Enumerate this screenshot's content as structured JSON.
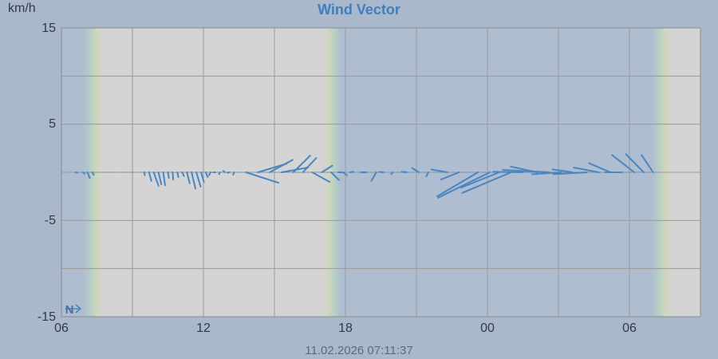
{
  "chart_data": {
    "type": "vector",
    "title": "Wind Vector",
    "ylabel": "km/h",
    "ylim": [
      -15,
      15
    ],
    "y_ticks": [
      "15",
      "5",
      "-5",
      "-15"
    ],
    "x_ticks": [
      "06",
      "12",
      "18",
      "00",
      "06"
    ],
    "x_range_hours": [
      0,
      27
    ],
    "compass_label": "N",
    "timestamp": "11.02.2026 07:11:37",
    "grid": true,
    "colors": {
      "vector": "#4a86c0",
      "day_fill": "#d4d4d4",
      "night_fill": "#aebdcf",
      "background": "#a9b8ca",
      "title": "#3f7fbf"
    },
    "daylight_periods": [
      {
        "start": 1.0,
        "end": 11.8
      },
      {
        "start": 25.0,
        "end": 27.0
      }
    ],
    "vectors": [
      {
        "t": 0.6,
        "u": 0.3,
        "v": -0.1
      },
      {
        "t": 0.9,
        "u": 0.4,
        "v": -0.3
      },
      {
        "t": 1.1,
        "u": 0.5,
        "v": -1.2
      },
      {
        "t": 1.3,
        "u": 0.3,
        "v": -0.5
      },
      {
        "t": 3.5,
        "u": 0.1,
        "v": -0.6
      },
      {
        "t": 3.7,
        "u": 0.5,
        "v": -1.8
      },
      {
        "t": 3.9,
        "u": 1.0,
        "v": -2.8
      },
      {
        "t": 4.1,
        "u": 0.6,
        "v": -2.5
      },
      {
        "t": 4.3,
        "u": 0.4,
        "v": -2.7
      },
      {
        "t": 4.5,
        "u": 0.2,
        "v": -1.2
      },
      {
        "t": 4.7,
        "u": 0.1,
        "v": -1.5
      },
      {
        "t": 4.9,
        "u": 0.2,
        "v": -1.0
      },
      {
        "t": 5.1,
        "u": 0.4,
        "v": -0.8
      },
      {
        "t": 5.3,
        "u": 0.6,
        "v": -2.3
      },
      {
        "t": 5.5,
        "u": 0.8,
        "v": -3.4
      },
      {
        "t": 5.7,
        "u": 0.9,
        "v": -3.0
      },
      {
        "t": 5.9,
        "u": 0.6,
        "v": -2.0
      },
      {
        "t": 6.1,
        "u": 0.4,
        "v": -1.0
      },
      {
        "t": 6.3,
        "u": -0.3,
        "v": -0.6
      },
      {
        "t": 6.5,
        "u": -0.4,
        "v": 0.0
      },
      {
        "t": 6.7,
        "u": -0.2,
        "v": -0.4
      },
      {
        "t": 6.9,
        "u": -0.3,
        "v": 0.3
      },
      {
        "t": 7.1,
        "u": -0.4,
        "v": -0.1
      },
      {
        "t": 7.3,
        "u": -0.2,
        "v": -0.5
      },
      {
        "t": 7.8,
        "u": 6.8,
        "v": -2.2
      },
      {
        "t": 8.3,
        "u": 6.0,
        "v": 1.8
      },
      {
        "t": 8.8,
        "u": 4.8,
        "v": 2.6
      },
      {
        "t": 9.3,
        "u": 5.5,
        "v": 1.0
      },
      {
        "t": 9.8,
        "u": 3.5,
        "v": 3.5
      },
      {
        "t": 10.2,
        "u": 2.8,
        "v": 3.0
      },
      {
        "t": 10.6,
        "u": 3.6,
        "v": -2.0
      },
      {
        "t": 11.0,
        "u": 2.2,
        "v": 1.4
      },
      {
        "t": 11.4,
        "u": 1.6,
        "v": -1.6
      },
      {
        "t": 11.7,
        "u": 1.0,
        "v": 0.0
      },
      {
        "t": 11.9,
        "u": 0.8,
        "v": -0.6
      },
      {
        "t": 12.2,
        "u": 0.6,
        "v": 0.1
      },
      {
        "t": 12.9,
        "u": -1.3,
        "v": 0.0
      },
      {
        "t": 13.3,
        "u": -1.0,
        "v": -1.8
      },
      {
        "t": 13.6,
        "u": -0.8,
        "v": 0.1
      },
      {
        "t": 14.0,
        "u": -0.3,
        "v": -0.4
      },
      {
        "t": 14.6,
        "u": -1.1,
        "v": 0.1
      },
      {
        "t": 15.1,
        "u": -1.4,
        "v": 0.9
      },
      {
        "t": 15.5,
        "u": -0.4,
        "v": -0.8
      },
      {
        "t": 16.3,
        "u": -3.3,
        "v": 0.6
      },
      {
        "t": 16.8,
        "u": -3.8,
        "v": -1.5
      },
      {
        "t": 17.6,
        "u": -8.5,
        "v": -5.0
      },
      {
        "t": 18.1,
        "u": -10.8,
        "v": -5.3
      },
      {
        "t": 18.5,
        "u": -8.0,
        "v": -3.2
      },
      {
        "t": 19.0,
        "u": -10.2,
        "v": -4.3
      },
      {
        "t": 19.5,
        "u": -6.2,
        "v": 0.1
      },
      {
        "t": 20.1,
        "u": -5.5,
        "v": 1.2
      },
      {
        "t": 20.6,
        "u": -9.6,
        "v": 0.5
      },
      {
        "t": 21.1,
        "u": -6.0,
        "v": -0.4
      },
      {
        "t": 21.6,
        "u": -4.2,
        "v": 0.6
      },
      {
        "t": 22.2,
        "u": -7.0,
        "v": -0.4
      },
      {
        "t": 22.7,
        "u": -5.2,
        "v": 1.0
      },
      {
        "t": 23.2,
        "u": -4.5,
        "v": 1.9
      },
      {
        "t": 23.7,
        "u": -3.6,
        "v": 0.0
      },
      {
        "t": 24.2,
        "u": -4.6,
        "v": 3.6
      },
      {
        "t": 24.6,
        "u": -3.7,
        "v": 3.8
      },
      {
        "t": 25.0,
        "u": -2.4,
        "v": 3.6
      }
    ]
  }
}
